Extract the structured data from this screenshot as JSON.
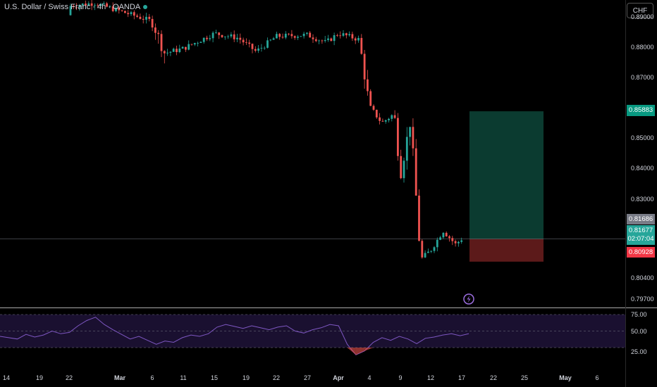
{
  "header": {
    "title": "U.S. Dollar / Swiss Franc · 4h · OANDA",
    "currency_button": "CHF"
  },
  "colors": {
    "background": "#000000",
    "up": "#26a69a",
    "down": "#ef5350",
    "target_zone": "#0b3b30",
    "stop_zone": "#5c1a1a",
    "rsi_line": "#7e57c2"
  },
  "price_axis": {
    "ticks": [
      {
        "value": 0.89,
        "label": "0.89000"
      },
      {
        "value": 0.88,
        "label": "0.88000"
      },
      {
        "value": 0.87,
        "label": "0.87000"
      },
      {
        "value": 0.85,
        "label": "0.85000"
      },
      {
        "value": 0.84,
        "label": "0.84000"
      },
      {
        "value": 0.83,
        "label": "0.83000"
      },
      {
        "value": 0.804,
        "label": "0.80400"
      },
      {
        "value": 0.797,
        "label": "0.79700"
      }
    ],
    "target_label": "0.85883",
    "last_close_label": "0.81686",
    "current_price_label": "0.81677",
    "countdown": "02:07:04",
    "stop_label": "0.80928"
  },
  "rsi_axis": {
    "ticks": [
      "75.00",
      "50.00",
      "25.00"
    ]
  },
  "time_axis": {
    "labels": [
      "14",
      "19",
      "22",
      "Mar",
      "6",
      "11",
      "15",
      "19",
      "22",
      "27",
      "Apr",
      "4",
      "9",
      "12",
      "17",
      "22",
      "25",
      "May",
      "6"
    ]
  },
  "chart_data": {
    "type": "candlestick",
    "symbol": "U.S. Dollar / Swiss Franc",
    "interval": "4h",
    "source": "OANDA",
    "quote_currency": "CHF",
    "price_range": [
      0.7965,
      0.8955
    ],
    "anchor_closes": [
      {
        "date": "Feb 13",
        "price": 0.8905
      },
      {
        "date": "Feb 18",
        "price": 0.8925
      },
      {
        "date": "Feb 22",
        "price": 0.8935
      },
      {
        "date": "Feb 26",
        "price": 0.8945
      },
      {
        "date": "Mar 3",
        "price": 0.8905
      },
      {
        "date": "Mar 6",
        "price": 0.8885
      },
      {
        "date": "Mar 8",
        "price": 0.878
      },
      {
        "date": "Mar 11",
        "price": 0.8795
      },
      {
        "date": "Mar 15",
        "price": 0.8845
      },
      {
        "date": "Mar 18",
        "price": 0.883
      },
      {
        "date": "Mar 20",
        "price": 0.8785
      },
      {
        "date": "Mar 22",
        "price": 0.8835
      },
      {
        "date": "Mar 27",
        "price": 0.884
      },
      {
        "date": "Mar 30",
        "price": 0.8815
      },
      {
        "date": "Apr 1",
        "price": 0.8845
      },
      {
        "date": "Apr 3",
        "price": 0.8825
      },
      {
        "date": "Apr 4",
        "price": 0.8605
      },
      {
        "date": "Apr 6",
        "price": 0.855
      },
      {
        "date": "Apr 8",
        "price": 0.858
      },
      {
        "date": "Apr 9",
        "price": 0.838
      },
      {
        "date": "Apr 10",
        "price": 0.856
      },
      {
        "date": "Apr 11",
        "price": 0.81
      },
      {
        "date": "Apr 12",
        "price": 0.813
      },
      {
        "date": "Apr 14",
        "price": 0.8195
      },
      {
        "date": "Apr 16",
        "price": 0.815
      },
      {
        "date": "Apr 17",
        "price": 0.8168
      }
    ],
    "position": {
      "side": "long",
      "entry": 0.81677,
      "target": 0.85883,
      "stop": 0.80928
    },
    "rsi": {
      "levels": [
        75,
        50,
        25
      ],
      "values": [
        42,
        40,
        38,
        45,
        41,
        44,
        50,
        46,
        48,
        58,
        66,
        71,
        60,
        52,
        45,
        38,
        42,
        36,
        30,
        35,
        33,
        40,
        44,
        42,
        46,
        56,
        60,
        57,
        54,
        58,
        55,
        52,
        56,
        58,
        50,
        47,
        52,
        55,
        60,
        58,
        30,
        14,
        20,
        33,
        40,
        36,
        42,
        38,
        31,
        39,
        41,
        44,
        46,
        43,
        46
      ]
    }
  }
}
